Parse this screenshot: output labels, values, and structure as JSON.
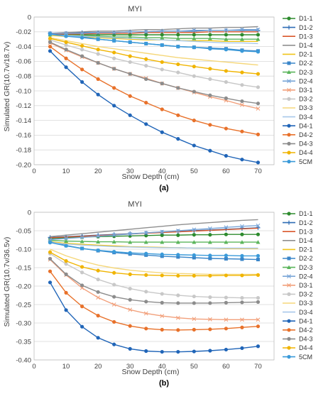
{
  "figure": {
    "captions": [
      "(a)",
      "(b)"
    ]
  },
  "chart_data": [
    {
      "type": "line",
      "title": "MYI",
      "xlabel": "Snow Depth (cm)",
      "ylabel": "Simulated GR(10.7v/18.7v)",
      "xlim": [
        0,
        75
      ],
      "ylim": [
        -0.2,
        0
      ],
      "xticks": [
        0,
        10,
        20,
        30,
        40,
        50,
        60,
        70
      ],
      "yticks": [
        0,
        -0.02,
        -0.04,
        -0.06,
        -0.08,
        -0.1,
        -0.12,
        -0.14,
        -0.16,
        -0.18,
        -0.2
      ],
      "grid": true,
      "legend": "right",
      "x": [
        5,
        10,
        15,
        20,
        25,
        30,
        35,
        40,
        45,
        50,
        55,
        60,
        65,
        70
      ],
      "series": [
        {
          "name": "D1-1",
          "color": "#2e8b2e",
          "marker": "circle",
          "values": [
            -0.024,
            -0.024,
            -0.024,
            -0.024,
            -0.024,
            -0.024,
            -0.024,
            -0.024,
            -0.024,
            -0.024,
            -0.024,
            -0.024,
            -0.024,
            -0.024
          ]
        },
        {
          "name": "D1-2",
          "color": "#2f6db5",
          "marker": "plus",
          "values": [
            -0.022,
            -0.022,
            -0.021,
            -0.021,
            -0.021,
            -0.02,
            -0.02,
            -0.019,
            -0.019,
            -0.019,
            -0.018,
            -0.018,
            -0.018,
            -0.018
          ]
        },
        {
          "name": "D1-3",
          "color": "#d9572b",
          "marker": "line",
          "values": [
            -0.023,
            -0.023,
            -0.023,
            -0.022,
            -0.022,
            -0.022,
            -0.021,
            -0.021,
            -0.021,
            -0.021,
            -0.02,
            -0.02,
            -0.02,
            -0.02
          ]
        },
        {
          "name": "D1-4",
          "color": "#8f8f8f",
          "marker": "line",
          "values": [
            -0.022,
            -0.021,
            -0.02,
            -0.019,
            -0.019,
            -0.018,
            -0.017,
            -0.017,
            -0.016,
            -0.015,
            -0.015,
            -0.014,
            -0.014,
            -0.013
          ]
        },
        {
          "name": "D2-1",
          "color": "#f0c419",
          "marker": "line",
          "values": [
            -0.025,
            -0.026,
            -0.027,
            -0.028,
            -0.029,
            -0.03,
            -0.031,
            -0.031,
            -0.032,
            -0.032,
            -0.032,
            -0.033,
            -0.033,
            -0.033
          ]
        },
        {
          "name": "D2-2",
          "color": "#3a86c9",
          "marker": "square",
          "values": [
            -0.023,
            -0.025,
            -0.027,
            -0.03,
            -0.032,
            -0.034,
            -0.036,
            -0.038,
            -0.04,
            -0.041,
            -0.042,
            -0.043,
            -0.045,
            -0.046
          ]
        },
        {
          "name": "D2-3",
          "color": "#5bb55b",
          "marker": "triangle",
          "values": [
            -0.024,
            -0.025,
            -0.025,
            -0.026,
            -0.027,
            -0.027,
            -0.028,
            -0.028,
            -0.029,
            -0.029,
            -0.029,
            -0.03,
            -0.03,
            -0.03
          ]
        },
        {
          "name": "D2-4",
          "color": "#7aa6d8",
          "marker": "x",
          "values": [
            -0.022,
            -0.022,
            -0.022,
            -0.021,
            -0.021,
            -0.02,
            -0.02,
            -0.019,
            -0.019,
            -0.018,
            -0.018,
            -0.018,
            -0.017,
            -0.017
          ]
        },
        {
          "name": "D3-1",
          "color": "#f2a07b",
          "marker": "x",
          "values": [
            -0.035,
            -0.045,
            -0.054,
            -0.062,
            -0.07,
            -0.077,
            -0.083,
            -0.09,
            -0.096,
            -0.102,
            -0.108,
            -0.113,
            -0.119,
            -0.124
          ]
        },
        {
          "name": "D3-2",
          "color": "#c8c8c8",
          "marker": "circle",
          "values": [
            -0.031,
            -0.038,
            -0.044,
            -0.05,
            -0.056,
            -0.061,
            -0.066,
            -0.071,
            -0.075,
            -0.08,
            -0.084,
            -0.088,
            -0.092,
            -0.095
          ]
        },
        {
          "name": "D3-3",
          "color": "#f5d77a",
          "marker": "line",
          "values": [
            -0.028,
            -0.032,
            -0.036,
            -0.04,
            -0.043,
            -0.046,
            -0.049,
            -0.052,
            -0.055,
            -0.057,
            -0.059,
            -0.061,
            -0.063,
            -0.065
          ]
        },
        {
          "name": "D3-4",
          "color": "#a8c8ea",
          "marker": "line",
          "values": [
            -0.024,
            -0.025,
            -0.026,
            -0.027,
            -0.028,
            -0.029,
            -0.03,
            -0.031,
            -0.032,
            -0.033,
            -0.034,
            -0.035,
            -0.035,
            -0.036
          ]
        },
        {
          "name": "D4-1",
          "color": "#2065b8",
          "marker": "circle",
          "values": [
            -0.046,
            -0.068,
            -0.088,
            -0.105,
            -0.12,
            -0.133,
            -0.145,
            -0.156,
            -0.165,
            -0.174,
            -0.181,
            -0.188,
            -0.193,
            -0.197
          ]
        },
        {
          "name": "D4-2",
          "color": "#e8712a",
          "marker": "circle",
          "values": [
            -0.04,
            -0.056,
            -0.071,
            -0.084,
            -0.096,
            -0.107,
            -0.116,
            -0.125,
            -0.133,
            -0.14,
            -0.146,
            -0.151,
            -0.155,
            -0.159
          ]
        },
        {
          "name": "D4-3",
          "color": "#8c8c8c",
          "marker": "circle",
          "values": [
            -0.034,
            -0.044,
            -0.053,
            -0.062,
            -0.07,
            -0.077,
            -0.084,
            -0.09,
            -0.096,
            -0.101,
            -0.106,
            -0.11,
            -0.114,
            -0.117
          ]
        },
        {
          "name": "D4-4",
          "color": "#f0b400",
          "marker": "circle",
          "values": [
            -0.029,
            -0.034,
            -0.039,
            -0.044,
            -0.048,
            -0.053,
            -0.057,
            -0.061,
            -0.064,
            -0.067,
            -0.07,
            -0.073,
            -0.075,
            -0.077
          ]
        },
        {
          "name": "5CM",
          "color": "#3a9ad9",
          "marker": "circle",
          "values": [
            -0.023,
            -0.026,
            -0.028,
            -0.03,
            -0.032,
            -0.034,
            -0.036,
            -0.038,
            -0.04,
            -0.041,
            -0.043,
            -0.044,
            -0.046,
            -0.047
          ]
        }
      ]
    },
    {
      "type": "line",
      "title": "MYI",
      "xlabel": "Snow Depth (cm)",
      "ylabel": "Simulated GR(10.7v/36.5v)",
      "xlim": [
        0,
        75
      ],
      "ylim": [
        -0.4,
        0
      ],
      "xticks": [
        0,
        10,
        20,
        30,
        40,
        50,
        60,
        70
      ],
      "yticks": [
        0,
        -0.05,
        -0.1,
        -0.15,
        -0.2,
        -0.25,
        -0.3,
        -0.35,
        -0.4
      ],
      "grid": true,
      "legend": "right",
      "x": [
        5,
        10,
        15,
        20,
        25,
        30,
        35,
        40,
        45,
        50,
        55,
        60,
        65,
        70
      ],
      "series": [
        {
          "name": "D1-1",
          "color": "#2e8b2e",
          "marker": "circle",
          "values": [
            -0.071,
            -0.069,
            -0.067,
            -0.066,
            -0.065,
            -0.064,
            -0.063,
            -0.062,
            -0.062,
            -0.061,
            -0.061,
            -0.06,
            -0.06,
            -0.06
          ]
        },
        {
          "name": "D1-2",
          "color": "#2f6db5",
          "marker": "plus",
          "values": [
            -0.068,
            -0.066,
            -0.064,
            -0.062,
            -0.06,
            -0.058,
            -0.056,
            -0.054,
            -0.052,
            -0.05,
            -0.048,
            -0.046,
            -0.044,
            -0.042
          ]
        },
        {
          "name": "D1-3",
          "color": "#d9572b",
          "marker": "line",
          "values": [
            -0.069,
            -0.067,
            -0.065,
            -0.063,
            -0.061,
            -0.059,
            -0.057,
            -0.055,
            -0.053,
            -0.051,
            -0.049,
            -0.047,
            -0.045,
            -0.043
          ]
        },
        {
          "name": "D1-4",
          "color": "#8f8f8f",
          "marker": "line",
          "values": [
            -0.066,
            -0.062,
            -0.058,
            -0.054,
            -0.05,
            -0.046,
            -0.042,
            -0.038,
            -0.034,
            -0.031,
            -0.028,
            -0.025,
            -0.022,
            -0.02
          ]
        },
        {
          "name": "D2-1",
          "color": "#f0c419",
          "marker": "line",
          "values": [
            -0.08,
            -0.084,
            -0.087,
            -0.089,
            -0.091,
            -0.093,
            -0.094,
            -0.095,
            -0.096,
            -0.097,
            -0.097,
            -0.098,
            -0.098,
            -0.098
          ]
        },
        {
          "name": "D2-2",
          "color": "#3a86c9",
          "marker": "square",
          "values": [
            -0.08,
            -0.09,
            -0.098,
            -0.104,
            -0.109,
            -0.113,
            -0.116,
            -0.119,
            -0.121,
            -0.123,
            -0.125,
            -0.126,
            -0.127,
            -0.128
          ]
        },
        {
          "name": "D2-3",
          "color": "#5bb55b",
          "marker": "triangle",
          "values": [
            -0.076,
            -0.078,
            -0.079,
            -0.08,
            -0.08,
            -0.081,
            -0.081,
            -0.081,
            -0.081,
            -0.081,
            -0.081,
            -0.081,
            -0.081,
            -0.081
          ]
        },
        {
          "name": "D2-4",
          "color": "#7aa6d8",
          "marker": "x",
          "values": [
            -0.074,
            -0.071,
            -0.068,
            -0.065,
            -0.062,
            -0.059,
            -0.056,
            -0.053,
            -0.05,
            -0.047,
            -0.044,
            -0.041,
            -0.038,
            -0.036
          ]
        },
        {
          "name": "D3-1",
          "color": "#f2a07b",
          "marker": "x",
          "values": [
            -0.128,
            -0.17,
            -0.205,
            -0.231,
            -0.25,
            -0.264,
            -0.274,
            -0.281,
            -0.286,
            -0.289,
            -0.29,
            -0.291,
            -0.291,
            -0.291
          ]
        },
        {
          "name": "D3-2",
          "color": "#c8c8c8",
          "marker": "circle",
          "values": [
            -0.112,
            -0.14,
            -0.163,
            -0.182,
            -0.196,
            -0.207,
            -0.215,
            -0.221,
            -0.225,
            -0.228,
            -0.23,
            -0.231,
            -0.232,
            -0.232
          ]
        },
        {
          "name": "D3-3",
          "color": "#f5d77a",
          "marker": "line",
          "values": [
            -0.1,
            -0.118,
            -0.132,
            -0.143,
            -0.151,
            -0.157,
            -0.161,
            -0.164,
            -0.166,
            -0.167,
            -0.168,
            -0.168,
            -0.168,
            -0.168
          ]
        },
        {
          "name": "D3-4",
          "color": "#a8c8ea",
          "marker": "line",
          "values": [
            -0.082,
            -0.086,
            -0.089,
            -0.091,
            -0.093,
            -0.094,
            -0.095,
            -0.096,
            -0.096,
            -0.097,
            -0.097,
            -0.097,
            -0.097,
            -0.097
          ]
        },
        {
          "name": "D4-1",
          "color": "#2065b8",
          "marker": "circle",
          "values": [
            -0.19,
            -0.265,
            -0.31,
            -0.34,
            -0.358,
            -0.37,
            -0.376,
            -0.378,
            -0.378,
            -0.377,
            -0.375,
            -0.372,
            -0.368,
            -0.363
          ]
        },
        {
          "name": "D4-2",
          "color": "#e8712a",
          "marker": "circle",
          "values": [
            -0.16,
            -0.218,
            -0.255,
            -0.28,
            -0.297,
            -0.308,
            -0.315,
            -0.318,
            -0.319,
            -0.318,
            -0.317,
            -0.315,
            -0.312,
            -0.309
          ]
        },
        {
          "name": "D4-3",
          "color": "#8c8c8c",
          "marker": "circle",
          "values": [
            -0.126,
            -0.168,
            -0.198,
            -0.216,
            -0.229,
            -0.237,
            -0.242,
            -0.245,
            -0.246,
            -0.246,
            -0.246,
            -0.245,
            -0.244,
            -0.243
          ]
        },
        {
          "name": "D4-4",
          "color": "#f0b400",
          "marker": "circle",
          "values": [
            -0.108,
            -0.132,
            -0.148,
            -0.158,
            -0.164,
            -0.168,
            -0.17,
            -0.171,
            -0.172,
            -0.172,
            -0.172,
            -0.171,
            -0.171,
            -0.17
          ]
        },
        {
          "name": "5CM",
          "color": "#3a9ad9",
          "marker": "circle",
          "values": [
            -0.082,
            -0.091,
            -0.098,
            -0.103,
            -0.107,
            -0.11,
            -0.112,
            -0.114,
            -0.115,
            -0.116,
            -0.117,
            -0.117,
            -0.118,
            -0.118
          ]
        }
      ]
    }
  ]
}
